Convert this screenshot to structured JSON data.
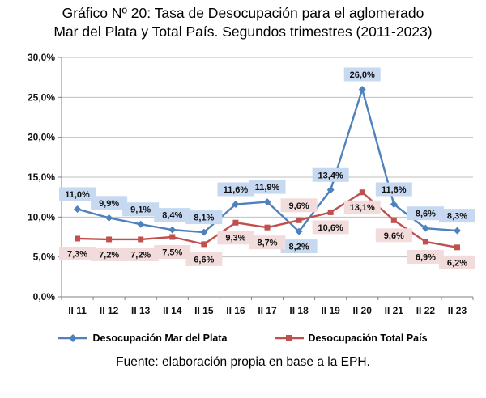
{
  "header": {
    "title_line1": "Gráfico Nº 20: Tasa de Desocupación para el aglomerado",
    "title_line2": "Mar del Plata y Total País. Segundos trimestres (2011-2023)"
  },
  "footer": {
    "source": "Fuente: elaboración propia en base a la EPH."
  },
  "chart_data": {
    "type": "line",
    "title": "Gráfico Nº 20: Tasa de Desocupación para el aglomerado Mar del Plata y Total País. Segundos trimestres (2011-2023)",
    "categories": [
      "II 11",
      "II 12",
      "II 13",
      "II 14",
      "II 15",
      "II 16",
      "II 17",
      "II 18",
      "II 19",
      "II 20",
      "II 21",
      "II 22",
      "II 23"
    ],
    "series": [
      {
        "name": "Desocupación Mar del Plata",
        "marker": "diamond",
        "color": "#4F81BD",
        "label_bg": "#C6D9F1",
        "values": [
          11.0,
          9.9,
          9.1,
          8.4,
          8.1,
          11.6,
          11.9,
          8.2,
          13.4,
          26.0,
          11.6,
          8.6,
          8.3
        ],
        "labels": [
          "11,0%",
          "9,9%",
          "9,1%",
          "8,4%",
          "8,1%",
          "11,6%",
          "11,9%",
          "8,2%",
          "13,4%",
          "26,0%",
          "11,6%",
          "8,6%",
          "8,3%"
        ]
      },
      {
        "name": "Desocupación Total País",
        "marker": "square",
        "color": "#C0504D",
        "label_bg": "#F2DCDB",
        "values": [
          7.3,
          7.2,
          7.2,
          7.5,
          6.6,
          9.3,
          8.7,
          9.6,
          10.6,
          13.1,
          9.6,
          6.9,
          6.2
        ],
        "labels": [
          "7,3%",
          "7,2%",
          "7,2%",
          "7,5%",
          "6,6%",
          "9,3%",
          "8,7%",
          "9,6%",
          "10,6%",
          "13,1%",
          "9,6%",
          "6,9%",
          "6,2%"
        ]
      }
    ],
    "y_axis": {
      "min": 0,
      "max": 30,
      "step": 5,
      "tick_labels": [
        "0,0%",
        "5,0%",
        "10,0%",
        "15,0%",
        "20,0%",
        "25,0%",
        "30,0%"
      ]
    },
    "grid": true,
    "legend_position": "bottom"
  }
}
